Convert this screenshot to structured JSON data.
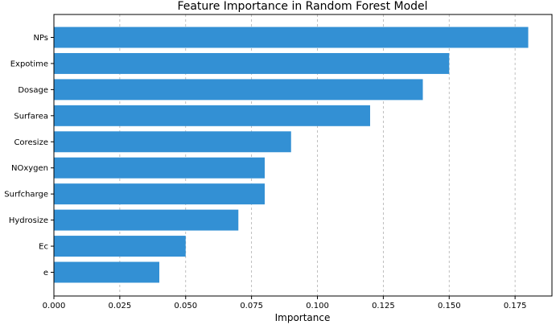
{
  "chart_data": {
    "type": "bar",
    "orientation": "horizontal",
    "title": "Feature Importance in Random Forest Model",
    "xlabel": "Importance",
    "ylabel": "",
    "categories": [
      "NPs",
      "Expotime",
      "Dosage",
      "Surfarea",
      "Coresize",
      "NOxygen",
      "Surfcharge",
      "Hydrosize",
      "Ec",
      "e"
    ],
    "values": [
      0.18,
      0.15,
      0.14,
      0.12,
      0.09,
      0.08,
      0.08,
      0.07,
      0.05,
      0.04
    ],
    "xlim": [
      0,
      0.189
    ],
    "xticks": [
      0.0,
      0.025,
      0.05,
      0.075,
      0.1,
      0.125,
      0.15,
      0.175
    ],
    "xtick_labels": [
      "0.000",
      "0.025",
      "0.050",
      "0.075",
      "0.100",
      "0.125",
      "0.150",
      "0.175"
    ],
    "grid": "x-dashed",
    "bar_color": "#3390d4",
    "grid_color": "#b0b0b0"
  }
}
